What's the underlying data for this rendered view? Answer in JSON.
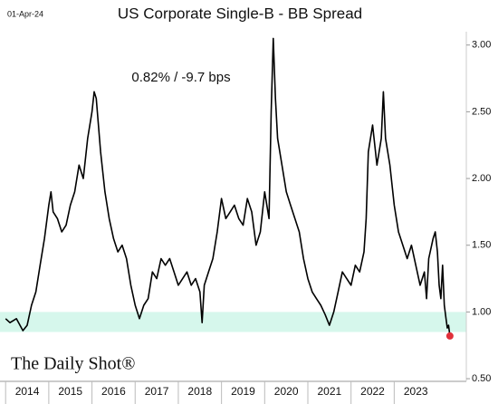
{
  "chart_data": {
    "type": "line",
    "title": "US Corporate Single-B - BB Spread",
    "date_label": "01-Apr-24",
    "annotation": "0.82%  /  -9.7 bps",
    "source": "The Daily Shot®",
    "color": "#000000",
    "end_marker_color": "#e0303a",
    "band": [
      0.85,
      1.0
    ],
    "band_color": "#d6f7ec",
    "x": [
      2014.0,
      2014.1,
      2014.25,
      2014.4,
      2014.5,
      2014.6,
      2014.7,
      2014.8,
      2014.9,
      2015.0,
      2015.05,
      2015.1,
      2015.2,
      2015.3,
      2015.4,
      2015.5,
      2015.6,
      2015.7,
      2015.8,
      2015.9,
      2016.0,
      2016.05,
      2016.1,
      2016.15,
      2016.2,
      2016.3,
      2016.4,
      2016.5,
      2016.6,
      2016.7,
      2016.8,
      2016.9,
      2017.0,
      2017.1,
      2017.2,
      2017.3,
      2017.4,
      2017.5,
      2017.6,
      2017.7,
      2017.8,
      2017.9,
      2018.0,
      2018.1,
      2018.2,
      2018.3,
      2018.4,
      2018.5,
      2018.55,
      2018.6,
      2018.7,
      2018.8,
      2018.9,
      2019.0,
      2019.1,
      2019.2,
      2019.3,
      2019.4,
      2019.5,
      2019.6,
      2019.7,
      2019.8,
      2019.9,
      2020.0,
      2020.1,
      2020.15,
      2020.2,
      2020.25,
      2020.3,
      2020.4,
      2020.5,
      2020.6,
      2020.7,
      2020.8,
      2020.9,
      2021.0,
      2021.1,
      2021.2,
      2021.3,
      2021.4,
      2021.5,
      2021.6,
      2021.7,
      2021.8,
      2021.9,
      2022.0,
      2022.1,
      2022.2,
      2022.3,
      2022.35,
      2022.4,
      2022.5,
      2022.6,
      2022.7,
      2022.75,
      2022.8,
      2022.9,
      2023.0,
      2023.1,
      2023.2,
      2023.3,
      2023.4,
      2023.5,
      2023.6,
      2023.7,
      2023.75,
      2023.8,
      2023.9,
      2023.95,
      2024.0,
      2024.04,
      2024.08,
      2024.12,
      2024.16,
      2024.2,
      2024.23,
      2024.26,
      2024.29
    ],
    "values": [
      0.95,
      0.92,
      0.95,
      0.86,
      0.9,
      1.05,
      1.15,
      1.35,
      1.55,
      1.8,
      1.9,
      1.75,
      1.7,
      1.6,
      1.65,
      1.8,
      1.9,
      2.1,
      2.0,
      2.3,
      2.5,
      2.65,
      2.6,
      2.4,
      2.2,
      1.9,
      1.7,
      1.55,
      1.45,
      1.5,
      1.4,
      1.2,
      1.05,
      0.95,
      1.05,
      1.1,
      1.3,
      1.25,
      1.4,
      1.35,
      1.4,
      1.3,
      1.2,
      1.25,
      1.3,
      1.2,
      1.25,
      1.15,
      0.92,
      1.2,
      1.3,
      1.4,
      1.6,
      1.85,
      1.7,
      1.75,
      1.8,
      1.7,
      1.65,
      1.85,
      1.75,
      1.5,
      1.6,
      1.9,
      1.7,
      2.5,
      3.05,
      2.6,
      2.3,
      2.1,
      1.9,
      1.8,
      1.7,
      1.6,
      1.4,
      1.25,
      1.15,
      1.1,
      1.05,
      0.98,
      0.9,
      1.0,
      1.15,
      1.3,
      1.25,
      1.2,
      1.35,
      1.3,
      1.45,
      1.7,
      2.2,
      2.4,
      2.1,
      2.3,
      2.65,
      2.3,
      2.1,
      1.8,
      1.6,
      1.5,
      1.4,
      1.5,
      1.35,
      1.2,
      1.3,
      1.1,
      1.4,
      1.55,
      1.6,
      1.45,
      1.2,
      1.1,
      1.35,
      1.05,
      0.95,
      0.88,
      0.9,
      0.82
    ],
    "xlim": [
      2013.87,
      2024.67
    ],
    "xticks": [
      2014,
      2015,
      2016,
      2017,
      2018,
      2019,
      2020,
      2021,
      2022,
      2023
    ],
    "ylim": [
      0.48,
      3.1
    ],
    "yticks": [
      {
        "value": 0.5,
        "label": "0.50"
      },
      {
        "value": 1.0,
        "label": "1.00"
      },
      {
        "value": 1.5,
        "label": "1.50"
      },
      {
        "value": 2.0,
        "label": "2.00"
      },
      {
        "value": 2.5,
        "label": "2.50"
      },
      {
        "value": 3.0,
        "label": "3.00"
      }
    ]
  }
}
